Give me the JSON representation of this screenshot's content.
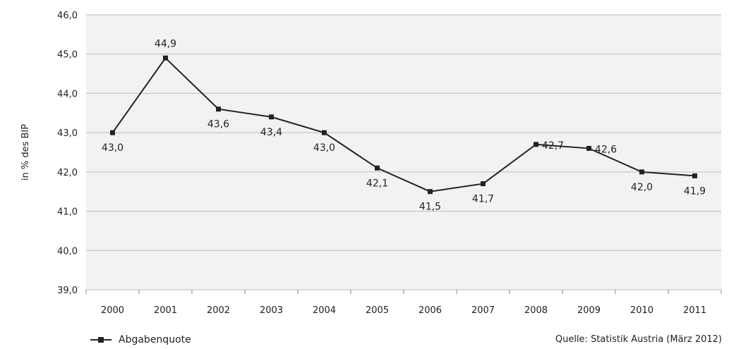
{
  "chart_data": {
    "type": "line",
    "categories": [
      "2000",
      "2001",
      "2002",
      "2003",
      "2004",
      "2005",
      "2006",
      "2007",
      "2008",
      "2009",
      "2010",
      "2011"
    ],
    "series": [
      {
        "name": "Abgabenquote",
        "values": [
          43.0,
          44.9,
          43.6,
          43.4,
          43.0,
          42.1,
          41.5,
          41.7,
          42.7,
          42.6,
          42.0,
          41.9
        ],
        "labels": [
          "43,0",
          "44,9",
          "43,6",
          "43,4",
          "43,0",
          "42,1",
          "41,5",
          "41,7",
          "42,7",
          "42,6",
          "42,0",
          "41,9"
        ]
      }
    ],
    "ylabel": "in % des BIP",
    "ylim": [
      39.0,
      46.0
    ],
    "yticks": [
      "39,0",
      "40,0",
      "41,0",
      "42,0",
      "43,0",
      "44,0",
      "45,0",
      "46,0"
    ],
    "grid": true,
    "legend_position": "bottom-left",
    "source": "Quelle: Statistik Austria (März 2012)",
    "colors": {
      "line": "#222222",
      "grid": "#bbbbbb",
      "plot_bg": "#f2f2f2"
    }
  }
}
